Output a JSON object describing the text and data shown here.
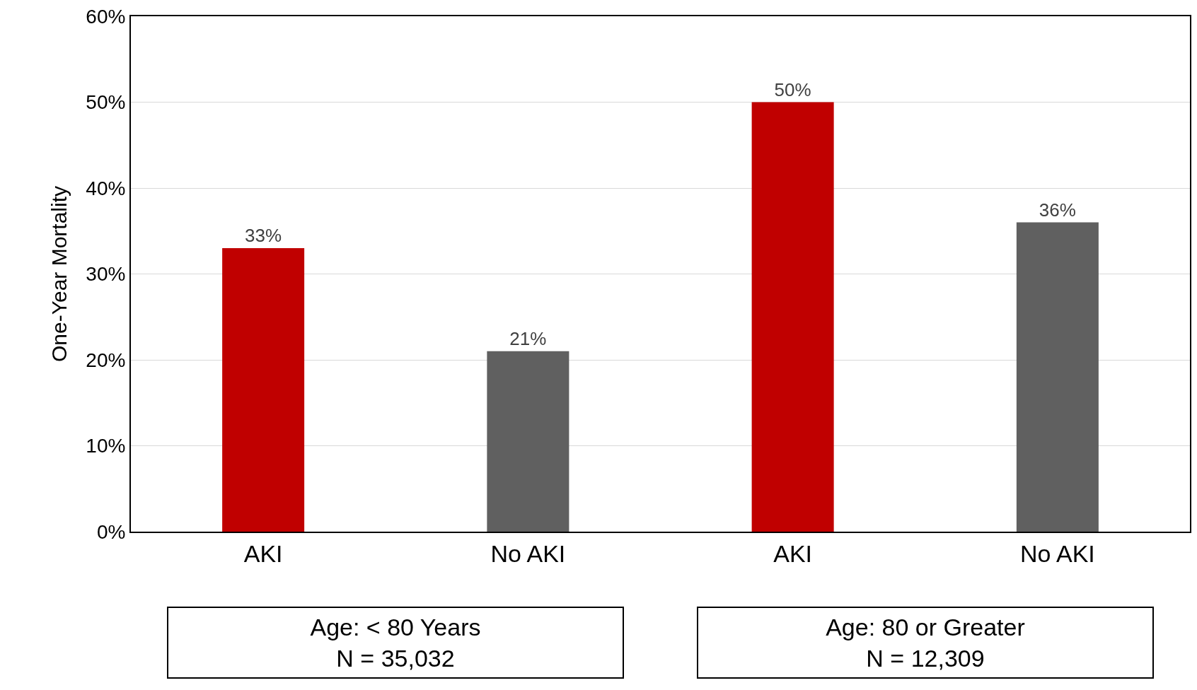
{
  "chart_data": {
    "type": "bar",
    "ylabel": "One-Year Mortality",
    "categories": [
      "AKI",
      "No AKI",
      "AKI",
      "No AKI"
    ],
    "values": [
      33,
      21,
      50,
      36
    ],
    "colors": [
      "#c00000",
      "#606060",
      "#c00000",
      "#606060"
    ],
    "value_labels": [
      "33%",
      "21%",
      "50%",
      "36%"
    ],
    "ylim": [
      0,
      60
    ],
    "yticks": [
      {
        "value": 0,
        "label": "0%"
      },
      {
        "value": 10,
        "label": "10%"
      },
      {
        "value": 20,
        "label": "20%"
      },
      {
        "value": 30,
        "label": "30%"
      },
      {
        "value": 40,
        "label": "40%"
      },
      {
        "value": 50,
        "label": "50%"
      },
      {
        "value": 60,
        "label": "60%"
      }
    ],
    "grid": "y",
    "annotations": [
      "Age: < 80 Years\nN = 35,032",
      "Age: 80 or Greater\nN = 12,309"
    ]
  }
}
